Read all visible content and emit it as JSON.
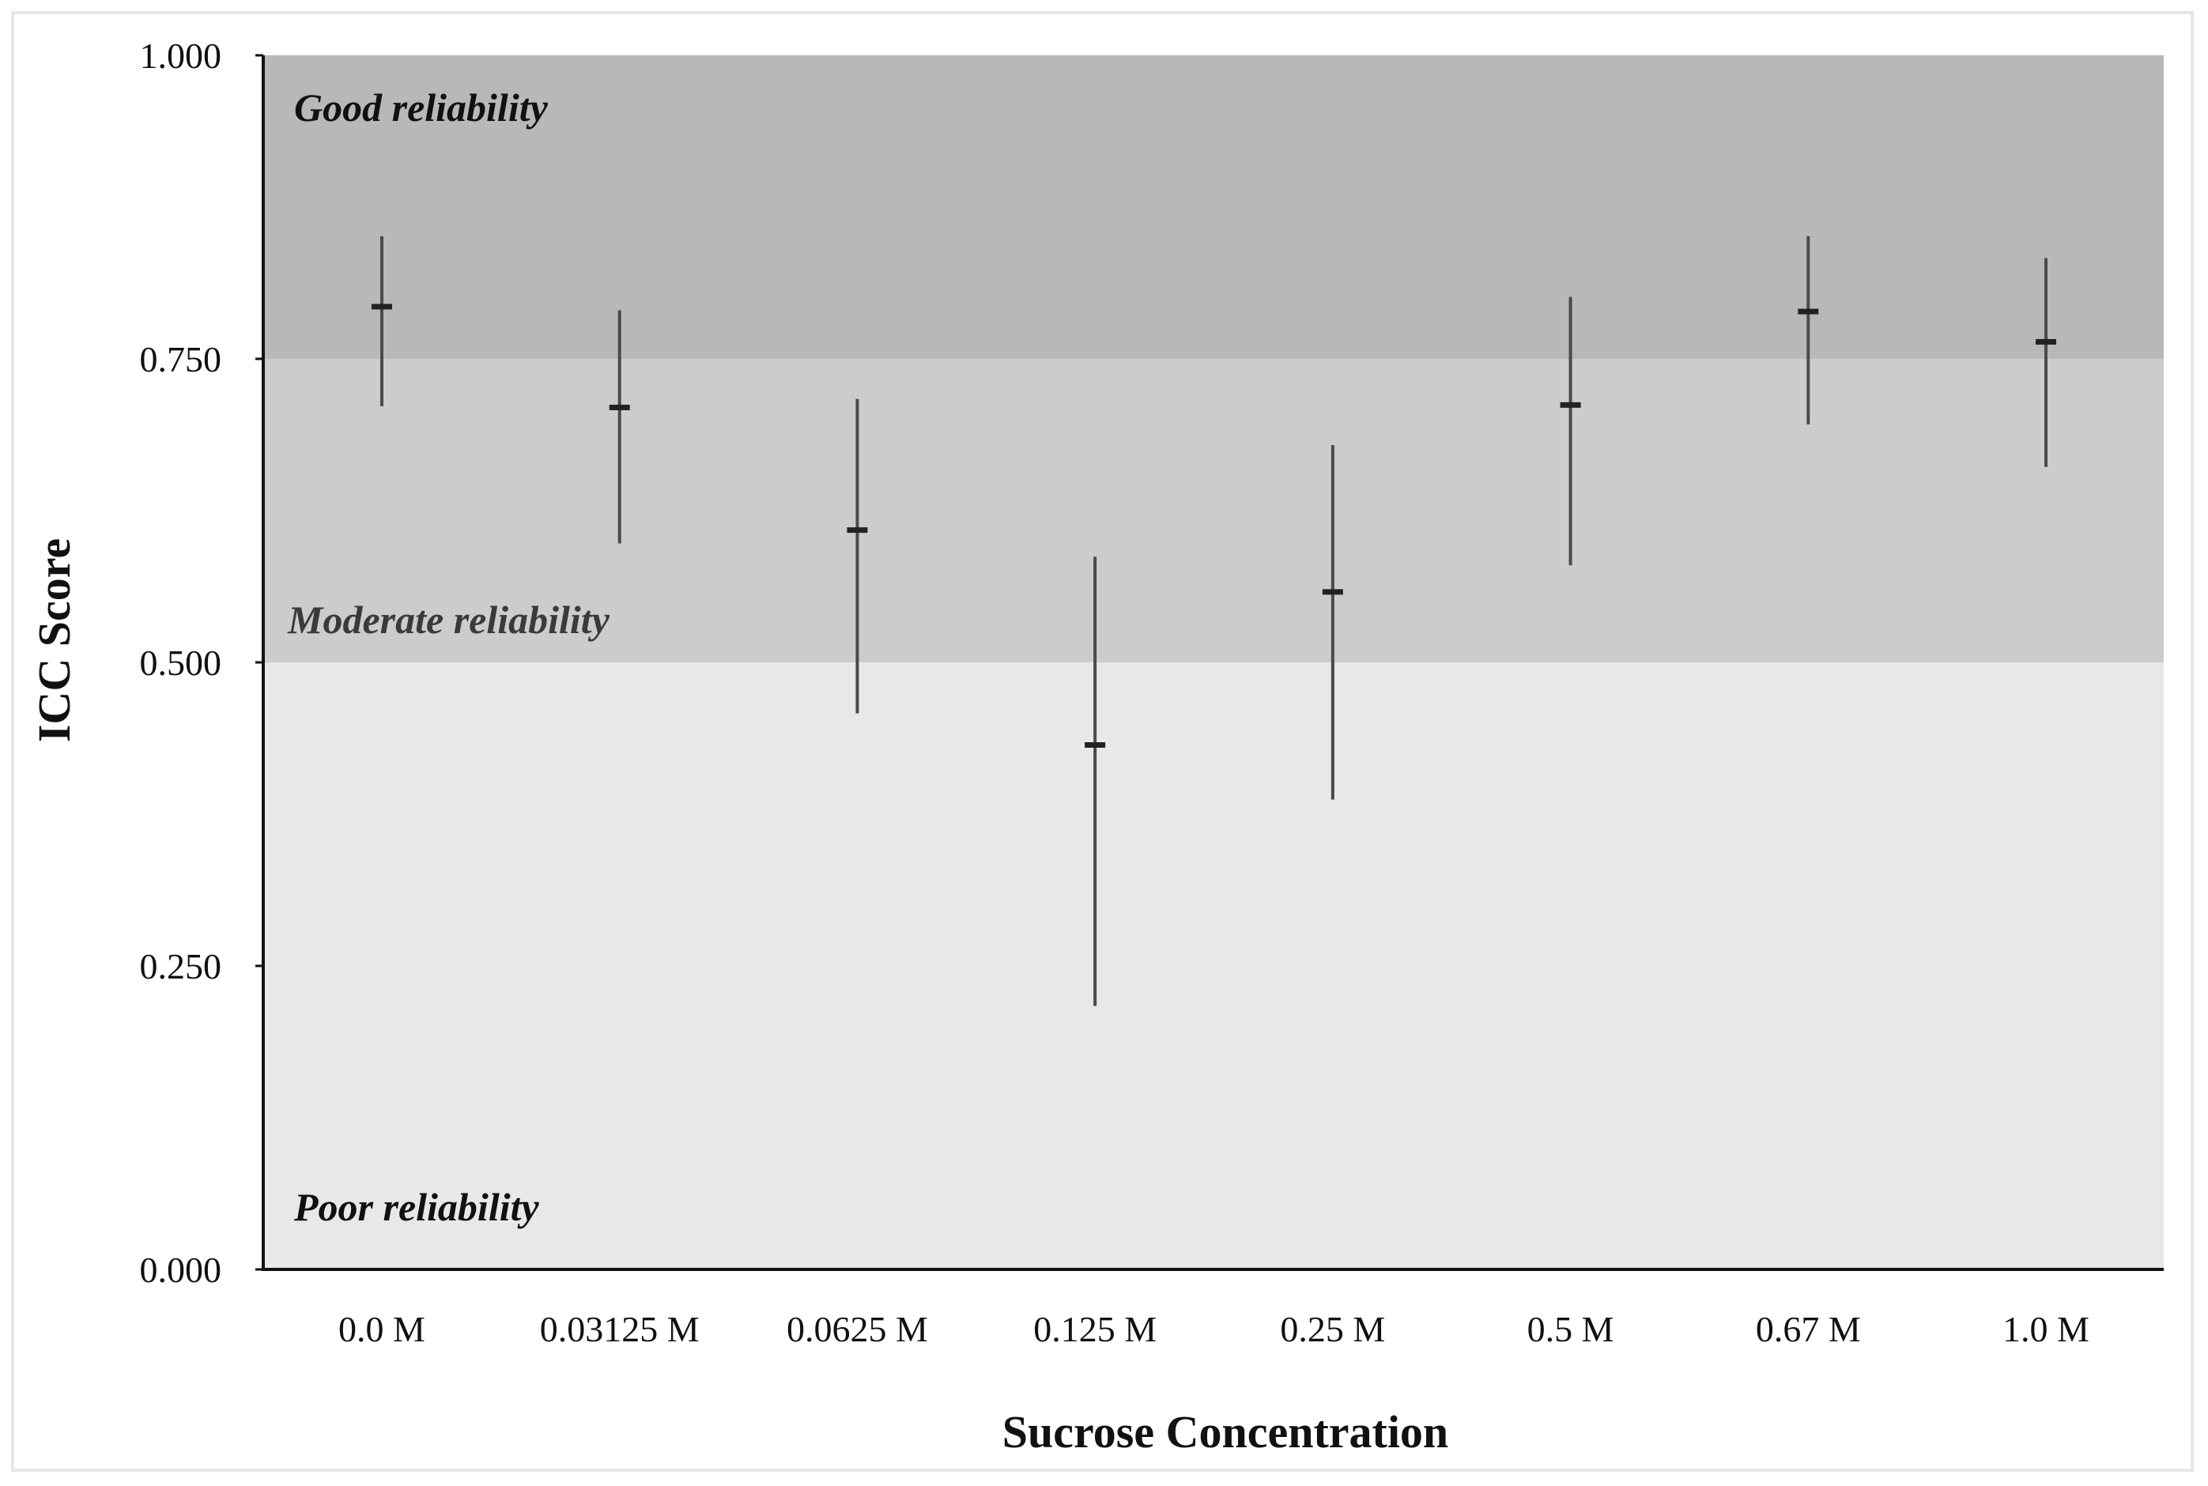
{
  "chart_data": {
    "type": "errorbar",
    "title": "",
    "xlabel": "Sucrose Concentration",
    "ylabel": "ICC Score",
    "ylim": [
      0,
      1
    ],
    "yticks": [
      "0.000",
      "0.250",
      "0.500",
      "0.750",
      "1.000"
    ],
    "ytick_values": [
      0,
      0.25,
      0.5,
      0.75,
      1.0
    ],
    "categories": [
      "0.0 M",
      "0.03125 M",
      "0.0625 M",
      "0.125 M",
      "0.25 M",
      "0.5 M",
      "0.67 M",
      "1.0 M"
    ],
    "series": [
      {
        "values": [
          0.793,
          0.71,
          0.609,
          0.432,
          0.558,
          0.712,
          0.789,
          0.764
        ],
        "lower": [
          0.711,
          0.598,
          0.458,
          0.217,
          0.387,
          0.58,
          0.696,
          0.661
        ],
        "upper": [
          0.851,
          0.79,
          0.717,
          0.587,
          0.679,
          0.801,
          0.851,
          0.833
        ]
      }
    ],
    "bands": [
      {
        "label": "Good reliability",
        "from": 0.75,
        "to": 1.0,
        "color": "#b8b8b8",
        "label_color": "#111111"
      },
      {
        "label": "Moderate reliability",
        "from": 0.5,
        "to": 0.75,
        "color": "#cccccc",
        "label_color": "#3a3a3a"
      },
      {
        "label": "Poor reliability",
        "from": 0.0,
        "to": 0.5,
        "color": "#e8e8e8",
        "label_color": "#111111"
      }
    ],
    "grid": false,
    "legend": "none"
  }
}
